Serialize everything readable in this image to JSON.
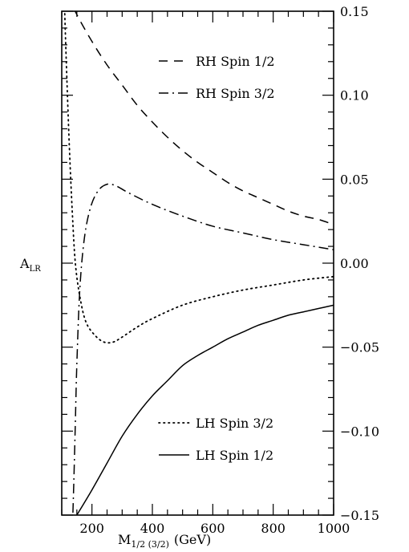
{
  "chart_data": {
    "type": "line",
    "xlabel": {
      "main": "M",
      "sub": "1/2 (3/2)",
      "unit": "(GeV)"
    },
    "ylabel": {
      "main": "A",
      "sub": "LR"
    },
    "xlim": [
      100,
      1000
    ],
    "ylim": [
      -0.15,
      0.15
    ],
    "x_ticks": [
      200,
      400,
      600,
      800,
      1000
    ],
    "y_ticks": [
      -0.15,
      -0.1,
      -0.05,
      0.0,
      0.05,
      0.1,
      0.15
    ],
    "x_tick_labels": [
      "200",
      "400",
      "600",
      "800",
      "1000"
    ],
    "y_tick_labels": [
      "−0.15",
      "−0.10",
      "−0.05",
      "0.00",
      "0.05",
      "0.10",
      "0.15"
    ],
    "y_axis_side": "right",
    "grid": false,
    "series": [
      {
        "name": "RH Spin 1/2",
        "dash": "dashed",
        "legend_group": "top",
        "points": [
          [
            120,
            0.16
          ],
          [
            150,
            0.148
          ],
          [
            200,
            0.132
          ],
          [
            250,
            0.118
          ],
          [
            300,
            0.106
          ],
          [
            350,
            0.094
          ],
          [
            400,
            0.084
          ],
          [
            450,
            0.075
          ],
          [
            500,
            0.067
          ],
          [
            550,
            0.06
          ],
          [
            600,
            0.054
          ],
          [
            650,
            0.048
          ],
          [
            700,
            0.043
          ],
          [
            750,
            0.039
          ],
          [
            800,
            0.035
          ],
          [
            850,
            0.031
          ],
          [
            900,
            0.028
          ],
          [
            950,
            0.026
          ],
          [
            1000,
            0.023
          ]
        ]
      },
      {
        "name": "RH Spin 3/2",
        "dash": "dashdot",
        "legend_group": "top",
        "points": [
          [
            135,
            -0.16
          ],
          [
            140,
            -0.13
          ],
          [
            145,
            -0.095
          ],
          [
            150,
            -0.06
          ],
          [
            160,
            -0.015
          ],
          [
            175,
            0.015
          ],
          [
            195,
            0.033
          ],
          [
            220,
            0.043
          ],
          [
            250,
            0.047
          ],
          [
            280,
            0.046
          ],
          [
            320,
            0.042
          ],
          [
            400,
            0.035
          ],
          [
            500,
            0.028
          ],
          [
            600,
            0.022
          ],
          [
            700,
            0.018
          ],
          [
            800,
            0.014
          ],
          [
            900,
            0.011
          ],
          [
            1000,
            0.008
          ]
        ]
      },
      {
        "name": "LH Spin 3/2",
        "dash": "dotted",
        "legend_group": "bottom",
        "points": [
          [
            108,
            0.16
          ],
          [
            115,
            0.12
          ],
          [
            125,
            0.07
          ],
          [
            135,
            0.03
          ],
          [
            145,
            0.0
          ],
          [
            160,
            -0.02
          ],
          [
            180,
            -0.035
          ],
          [
            210,
            -0.043
          ],
          [
            240,
            -0.047
          ],
          [
            270,
            -0.047
          ],
          [
            300,
            -0.044
          ],
          [
            350,
            -0.038
          ],
          [
            400,
            -0.033
          ],
          [
            500,
            -0.025
          ],
          [
            600,
            -0.02
          ],
          [
            700,
            -0.016
          ],
          [
            800,
            -0.013
          ],
          [
            900,
            -0.01
          ],
          [
            1000,
            -0.008
          ]
        ]
      },
      {
        "name": "LH Spin 1/2",
        "dash": "solid",
        "legend_group": "bottom",
        "points": [
          [
            150,
            -0.15
          ],
          [
            200,
            -0.135
          ],
          [
            250,
            -0.119
          ],
          [
            300,
            -0.103
          ],
          [
            350,
            -0.09
          ],
          [
            400,
            -0.079
          ],
          [
            450,
            -0.07
          ],
          [
            500,
            -0.061
          ],
          [
            550,
            -0.055
          ],
          [
            600,
            -0.05
          ],
          [
            650,
            -0.045
          ],
          [
            700,
            -0.041
          ],
          [
            750,
            -0.037
          ],
          [
            800,
            -0.034
          ],
          [
            850,
            -0.031
          ],
          [
            900,
            -0.029
          ],
          [
            950,
            -0.027
          ],
          [
            1000,
            -0.025
          ]
        ]
      }
    ]
  }
}
